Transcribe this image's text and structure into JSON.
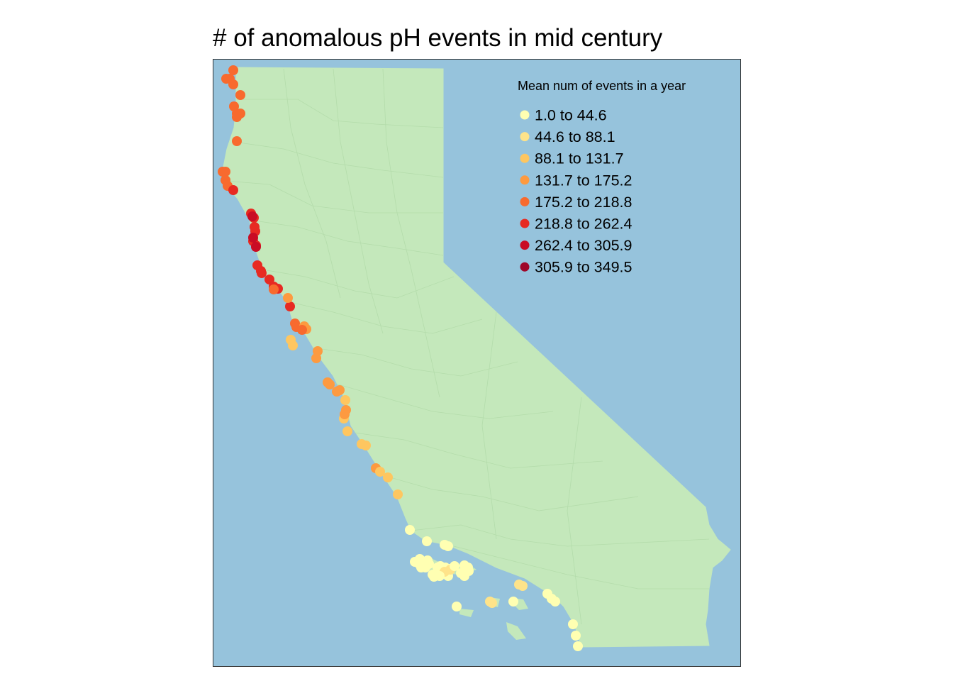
{
  "title": "# of anomalous pH events in mid century",
  "colors": {
    "ocean": "#96c3dc",
    "land": "#c4e8bb",
    "county_lines": "#b4dcab",
    "frame": "#333333"
  },
  "legend": {
    "title": "Mean num of events in a year",
    "items": [
      {
        "label": "1.0 to 44.6",
        "color": "#ffffb2"
      },
      {
        "label": "44.6 to 88.1",
        "color": "#fee38a"
      },
      {
        "label": "88.1 to 131.7",
        "color": "#fec660"
      },
      {
        "label": "131.7 to 175.2",
        "color": "#fd9a40"
      },
      {
        "label": "175.2 to 218.8",
        "color": "#f86a2e"
      },
      {
        "label": "218.8 to 262.4",
        "color": "#e72a22"
      },
      {
        "label": "262.4 to 305.9",
        "color": "#c90c24"
      },
      {
        "label": "305.9 to 349.5",
        "color": "#9e0628"
      }
    ]
  },
  "events_map": {
    "points_by_class": [
      {
        "class": "1.0 to 44.6",
        "count": 26
      },
      {
        "class": "44.6 to 88.1",
        "count": 6
      },
      {
        "class": "88.1 to 131.7",
        "count": 13
      },
      {
        "class": "131.7 to 175.2",
        "count": 16
      },
      {
        "class": "175.2 to 218.8",
        "count": 16
      },
      {
        "class": "218.8 to 262.4",
        "count": 14
      },
      {
        "class": "262.4 to 305.9",
        "count": 3
      },
      {
        "class": "305.9 to 349.5",
        "count": 0
      }
    ]
  }
}
